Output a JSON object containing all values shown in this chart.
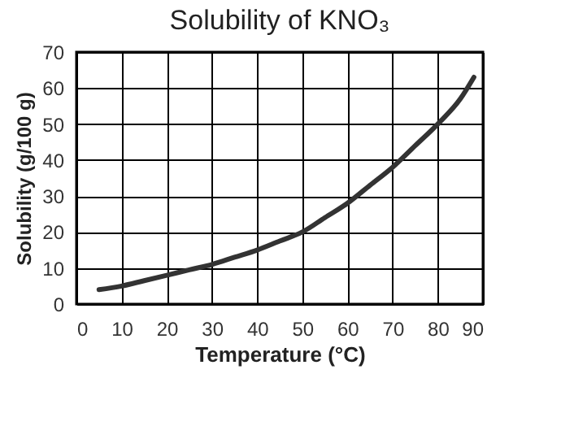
{
  "chart_data": {
    "type": "line",
    "title": "Solubility of KNO₃",
    "xlabel": "Temperature (°C)",
    "ylabel": "Solubility (g/100 g)",
    "x": [
      5,
      10,
      15,
      20,
      25,
      30,
      35,
      40,
      45,
      50,
      55,
      60,
      65,
      70,
      75,
      80,
      85,
      88
    ],
    "series": [
      {
        "color": "#333333",
        "values": [
          4,
          5,
          6.5,
          8,
          9.5,
          11,
          13,
          15,
          17.5,
          20,
          24,
          28,
          33,
          38,
          44,
          50,
          57,
          63
        ]
      }
    ],
    "xlim": [
      0,
      90
    ],
    "xticks": [
      0,
      10,
      20,
      30,
      40,
      50,
      60,
      70,
      80,
      90
    ],
    "ylim": [
      0,
      70
    ],
    "yticks": [
      0,
      10,
      20,
      30,
      40,
      50,
      60,
      70
    ],
    "grid": true,
    "marker": "none",
    "line_style": "solid"
  }
}
